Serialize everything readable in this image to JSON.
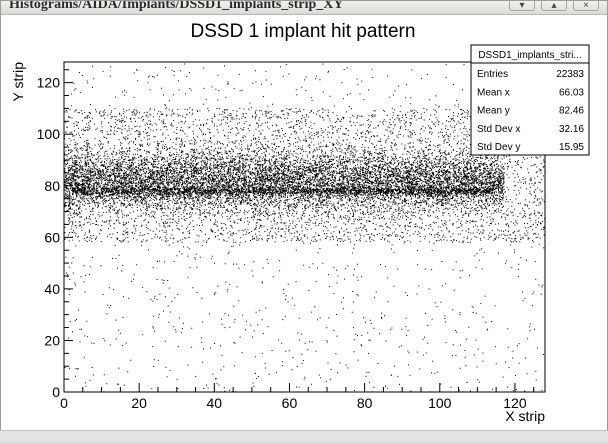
{
  "window": {
    "title": "Histograms/AIDA/Implants/DSSD1_implants_strip_XY",
    "buttons": {
      "minimize": "▾",
      "maximize": "▴",
      "close": "×"
    }
  },
  "chart_data": {
    "type": "scatter",
    "title": "DSSD 1 implant hit pattern",
    "xlabel": "X strip",
    "ylabel": "Y strip",
    "xlim": [
      0,
      128
    ],
    "ylim": [
      0,
      128
    ],
    "xticks": [
      0,
      20,
      40,
      60,
      80,
      100,
      120
    ],
    "yticks": [
      0,
      20,
      40,
      60,
      80,
      100,
      120
    ],
    "distribution": {
      "dense_band_y_center": 82,
      "dense_band_y_sigma": 8,
      "dense_band_x_range": [
        0,
        117
      ],
      "point_color": "#000000"
    },
    "stats_box": {
      "name": "DSSD1_implants_stri...",
      "rows": [
        {
          "label": "Entries",
          "value": "22383"
        },
        {
          "label": "Mean x",
          "value": "66.03"
        },
        {
          "label": "Mean y",
          "value": "82.46"
        },
        {
          "label": "Std Dev x",
          "value": "32.16"
        },
        {
          "label": "Std Dev y",
          "value": "15.95"
        }
      ]
    }
  }
}
